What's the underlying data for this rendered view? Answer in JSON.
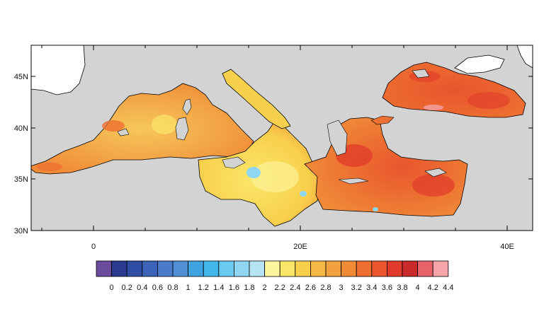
{
  "map": {
    "lat_labels": [
      "45N",
      "40N",
      "35N",
      "30N"
    ],
    "lon_labels": [
      "0",
      "20E",
      "40E"
    ],
    "ocean_color": "#d3d3d3",
    "land_color": "#ffffff",
    "coastline_color": "#000000"
  },
  "colorbar": {
    "labels": [
      "0",
      "0.2",
      "0.4",
      "0.6",
      "0.8",
      "1",
      "1.2",
      "1.4",
      "1.6",
      "1.8",
      "2",
      "2.2",
      "2.4",
      "2.6",
      "2.8",
      "3",
      "3.2",
      "3.4",
      "3.6",
      "3.8",
      "4",
      "4.2",
      "4.4"
    ],
    "colors": [
      "#6a4c9c",
      "#2b3a8f",
      "#2f4fa6",
      "#3b63b8",
      "#4c7ac8",
      "#4f8fd6",
      "#3fa3e0",
      "#41b7ea",
      "#6ac9ef",
      "#8fd6f2",
      "#b7e4f4",
      "#fdf5a0",
      "#fbe66a",
      "#f8d04c",
      "#f6b845",
      "#f3a13e",
      "#f08a37",
      "#ed6f31",
      "#e9552d",
      "#e03a2a",
      "#c92a2a",
      "#e8626a",
      "#f6a3a9"
    ]
  }
}
